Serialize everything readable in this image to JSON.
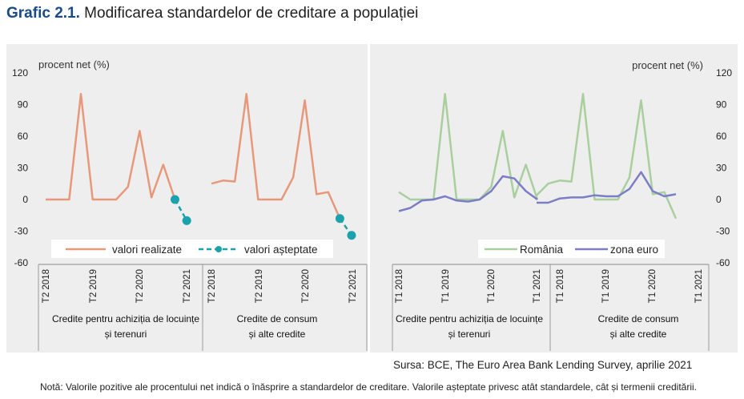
{
  "header": {
    "prefix": "Grafic 2.1.",
    "title": "Modificarea standardelor de creditare a populației"
  },
  "colors": {
    "realized": "#e8987a",
    "expected": "#1ba2ad",
    "romania": "#a9cf9e",
    "euro": "#7b7ec4",
    "panel": "#eeeeee"
  },
  "chart_data": [
    {
      "type": "line",
      "ylabel": "procent net (%)",
      "ylim": [
        -60,
        120
      ],
      "yticks": [
        120,
        90,
        60,
        30,
        0,
        -30,
        -60
      ],
      "xticks": [
        "T2 2018",
        "T2 2019",
        "T2 2020",
        "T2 2021",
        "T2 2018",
        "T2 2019",
        "T2 2020",
        "T2 2021"
      ],
      "groups": [
        "Credite pentru achiziția de locuințe și terenuri",
        "Credite de consum și alte credite"
      ],
      "legend": [
        "valori realizate",
        "valori așteptate"
      ],
      "series": [
        {
          "name": "valori realizate",
          "group": 0,
          "start_index": 0,
          "values": [
            0,
            0,
            0,
            100,
            0,
            0,
            0,
            12,
            65,
            2,
            33,
            0
          ]
        },
        {
          "name": "valori așteptate",
          "group": 0,
          "start_index": 11,
          "values": [
            0,
            -20
          ]
        },
        {
          "name": "valori realizate",
          "group": 1,
          "start_index": 0,
          "values": [
            15,
            18,
            17,
            100,
            0,
            0,
            0,
            21,
            94,
            5,
            7,
            -18
          ]
        },
        {
          "name": "valori așteptate",
          "group": 1,
          "start_index": 11,
          "values": [
            -18,
            -34
          ]
        }
      ]
    },
    {
      "type": "line",
      "ylabel": "procent net (%)",
      "ylim": [
        -60,
        120
      ],
      "yticks": [
        120,
        90,
        60,
        30,
        0,
        -30,
        -60
      ],
      "xticks": [
        "T1 2018",
        "T1 2019",
        "T1 2020",
        "T1 2021",
        "T1 2018",
        "T1 2019",
        "T1 2020",
        "T1 2021"
      ],
      "groups": [
        "Credite pentru achiziția de locuințe și terenuri",
        "Credite de consum și alte credite"
      ],
      "legend": [
        "România",
        "zona euro"
      ],
      "series": [
        {
          "name": "România",
          "group": 0,
          "values": [
            7,
            0,
            0,
            0,
            100,
            0,
            0,
            0,
            12,
            65,
            2,
            33,
            0
          ]
        },
        {
          "name": "zona euro",
          "group": 0,
          "values": [
            -11,
            -8,
            -1,
            0,
            3,
            -1,
            -2,
            0,
            8,
            22,
            20,
            8,
            0
          ]
        },
        {
          "name": "România",
          "group": 1,
          "values": [
            4,
            15,
            18,
            17,
            100,
            0,
            0,
            0,
            21,
            94,
            5,
            7,
            -18
          ]
        },
        {
          "name": "zona euro",
          "group": 1,
          "values": [
            -3,
            -3,
            1,
            2,
            2,
            4,
            3,
            3,
            10,
            26,
            8,
            3,
            5
          ]
        }
      ]
    }
  ],
  "group_labels": {
    "housing_line1": "Credite pentru achiziția de locuințe",
    "housing_line2": "și terenuri",
    "consumer_line1": "Credite de consum",
    "consumer_line2": "și alte credite"
  },
  "source": "Sursa: BCE, The Euro Area Bank Lending Survey, aprilie 2021",
  "note": "Notă: Valorile pozitive ale procentului net indică o înăsprire a standardelor de creditare. Valorile așteptate privesc atât standardele, cât și termenii creditării."
}
